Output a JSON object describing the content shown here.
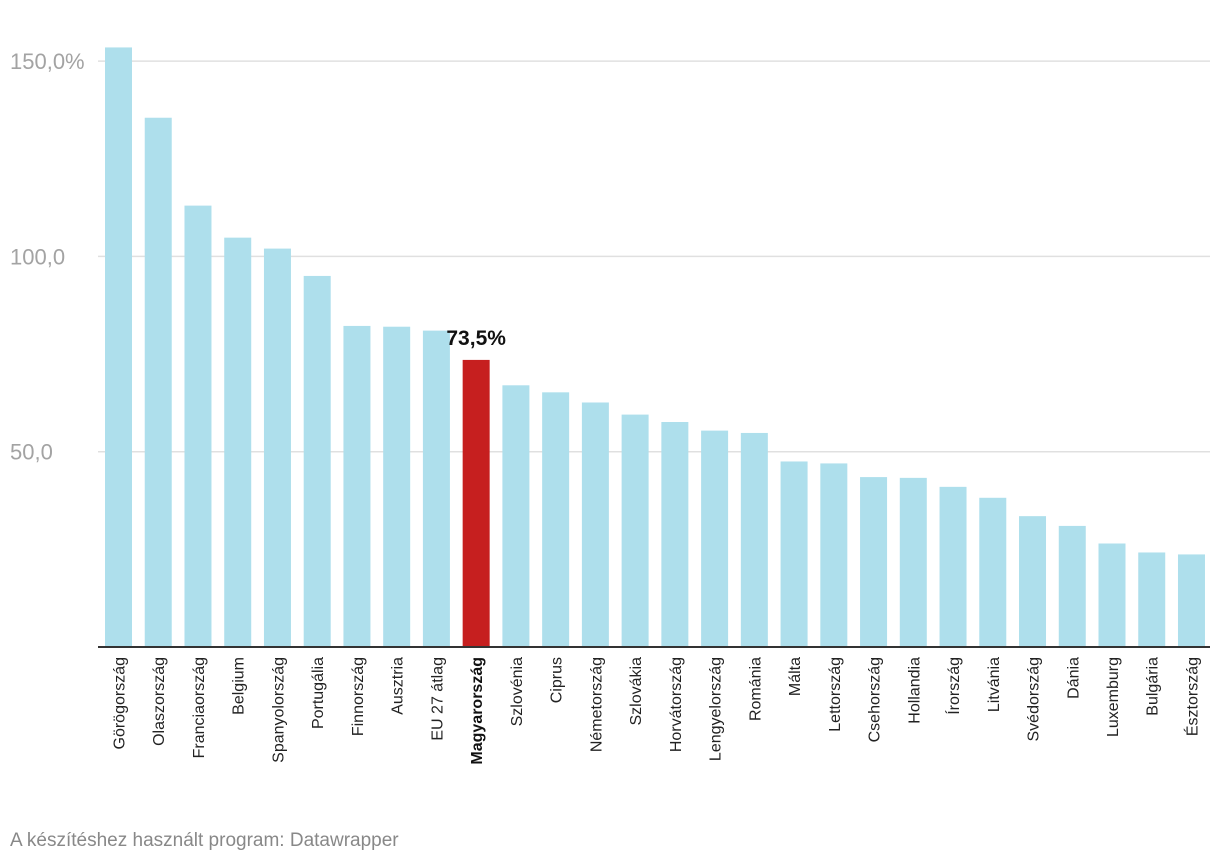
{
  "chart_data": {
    "type": "bar",
    "categories": [
      "Görögország",
      "Olaszország",
      "Franciaország",
      "Belgium",
      "Spanyolország",
      "Portugália",
      "Finnország",
      "Ausztria",
      "EU 27 átlag",
      "Magyarország",
      "Szlovénia",
      "Ciprus",
      "Németország",
      "Szlovákia",
      "Horvátország",
      "Lengyelország",
      "Románia",
      "Málta",
      "Lettország",
      "Csehország",
      "Hollandia",
      "Írország",
      "Litvánia",
      "Svédország",
      "Dánia",
      "Luxemburg",
      "Bulgária",
      "Észtország"
    ],
    "values": [
      153.5,
      135.5,
      113,
      104.8,
      102,
      95,
      82.2,
      82,
      81,
      73.5,
      67,
      65.2,
      62.6,
      59.5,
      57.6,
      55.4,
      54.8,
      47.5,
      47,
      43.5,
      43.3,
      41,
      38.2,
      33.5,
      31,
      26.5,
      24.2,
      23.7
    ],
    "highlight_category": "Magyarország",
    "highlight_label": "73,5%",
    "yticks": [
      {
        "value": 50,
        "label": "50,0"
      },
      {
        "value": 100,
        "label": "100,0"
      },
      {
        "value": 150,
        "label": "150,0%"
      }
    ],
    "ylim": [
      0,
      153.5
    ],
    "title": "",
    "xlabel": "",
    "ylabel": "",
    "grid": true
  },
  "colors": {
    "bar": "#aedfec",
    "highlight": "#c61f1f",
    "grid": "#e0e0e0",
    "axis": "#333333"
  },
  "credit": "A készítéshez használt program: Datawrapper"
}
